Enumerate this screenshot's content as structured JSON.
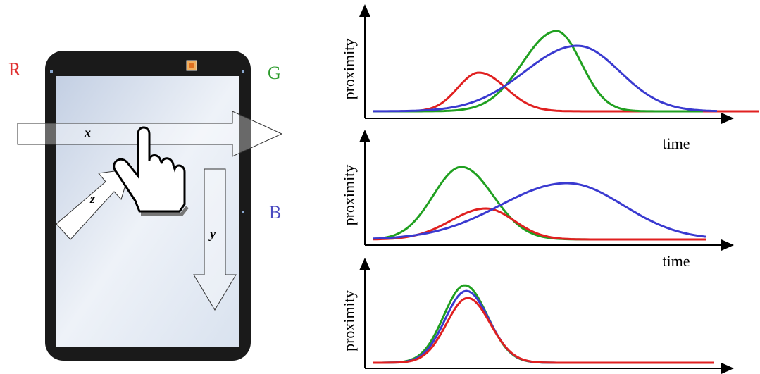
{
  "labels": {
    "r": "R",
    "g": "G",
    "b": "B"
  },
  "arrows": {
    "x": "x",
    "y": "y",
    "z": "z"
  },
  "plots": [
    {
      "y_label": "proximity",
      "x_label": "time"
    },
    {
      "y_label": "proximity",
      "x_label": "time"
    },
    {
      "y_label": "proximity"
    }
  ]
}
